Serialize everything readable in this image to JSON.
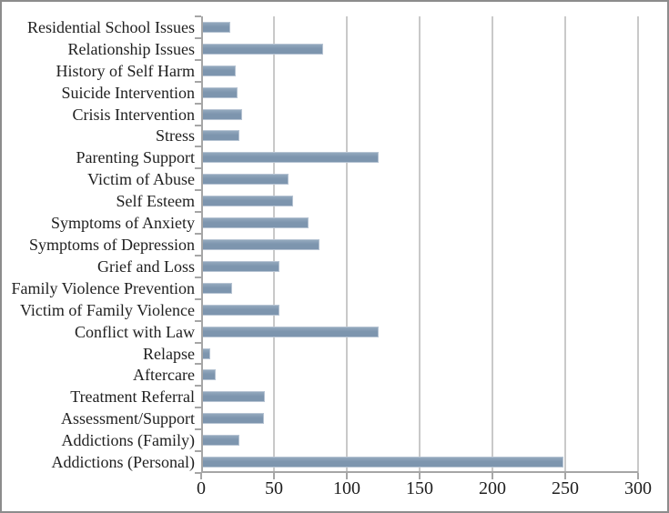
{
  "chart_data": {
    "type": "bar",
    "orientation": "horizontal",
    "title": "",
    "xlabel": "",
    "ylabel": "",
    "categories": [
      "Residential School Issues",
      "Relationship Issues",
      "History of Self Harm",
      "Suicide Intervention",
      "Crisis Intervention",
      "Stress",
      "Parenting Support",
      "Victim of Abuse",
      "Self Esteem",
      "Symptoms of Anxiety",
      "Symptoms of Depression",
      "Grief and Loss",
      "Family Violence Prevention",
      "Victim of Family Violence",
      "Conflict with Law",
      "Relapse",
      "Aftercare",
      "Treatment Referral",
      "Assessment/Support",
      "Addictions (Family)",
      "Addictions (Personal)"
    ],
    "values": [
      20,
      84,
      24,
      25,
      28,
      26,
      122,
      60,
      63,
      74,
      81,
      54,
      21,
      54,
      122,
      6,
      10,
      44,
      43,
      26,
      249
    ],
    "xlim": [
      0,
      300
    ],
    "x_ticks": [
      0,
      50,
      100,
      150,
      200,
      250,
      300
    ],
    "grid": true,
    "legend": false,
    "bar_color": "#7D95AE"
  },
  "colors": {
    "bar": "#7D95AE",
    "bar_light": "#93A8BD",
    "bar_edge": "#B7C4D3",
    "gridline": "#C9C9C9",
    "axis": "#A6A6A6",
    "text": "#1F1F1F",
    "frame_border": "#8C8C8C",
    "background": "#FFFFFF"
  }
}
